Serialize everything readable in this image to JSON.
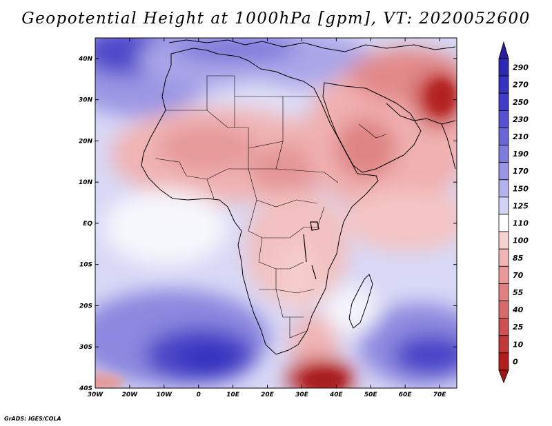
{
  "title": "Geopotential Height at 1000hPa [gpm], VT: 2020052600",
  "credit": "GrADS: IGES/COLA",
  "map": {
    "variable": "Geopotential Height",
    "level": "1000hPa",
    "units": "gpm",
    "valid_time": "2020052600",
    "lon_range": [
      -30,
      75
    ],
    "lat_range": [
      -40,
      45
    ],
    "lon_ticks": [
      {
        "value": -30,
        "label": "30W"
      },
      {
        "value": -20,
        "label": "20W"
      },
      {
        "value": -10,
        "label": "10W"
      },
      {
        "value": 0,
        "label": "0"
      },
      {
        "value": 10,
        "label": "10E"
      },
      {
        "value": 20,
        "label": "20E"
      },
      {
        "value": 30,
        "label": "30E"
      },
      {
        "value": 40,
        "label": "40E"
      },
      {
        "value": 50,
        "label": "50E"
      },
      {
        "value": 60,
        "label": "60E"
      },
      {
        "value": 70,
        "label": "70E"
      }
    ],
    "lat_ticks": [
      {
        "value": 40,
        "label": "40N"
      },
      {
        "value": 30,
        "label": "30N"
      },
      {
        "value": 20,
        "label": "20N"
      },
      {
        "value": 10,
        "label": "10N"
      },
      {
        "value": 0,
        "label": "EQ"
      },
      {
        "value": -10,
        "label": "10S"
      },
      {
        "value": -20,
        "label": "20S"
      },
      {
        "value": -30,
        "label": "30S"
      },
      {
        "value": -40,
        "label": "40S"
      }
    ]
  },
  "colorbar": {
    "levels": [
      {
        "label": "290",
        "color": "#2c28b4"
      },
      {
        "label": "270",
        "color": "#3532be"
      },
      {
        "label": "250",
        "color": "#403cc8"
      },
      {
        "label": "230",
        "color": "#5550cf"
      },
      {
        "label": "210",
        "color": "#6a66d6"
      },
      {
        "label": "190",
        "color": "#807cdd"
      },
      {
        "label": "170",
        "color": "#9995e4"
      },
      {
        "label": "150",
        "color": "#b4b2ec"
      },
      {
        "label": "125",
        "color": "#d2d2f5"
      },
      {
        "label": "110",
        "color": "#ffffff"
      },
      {
        "label": "100",
        "color": "#f6d2d2"
      },
      {
        "label": "85",
        "color": "#f0b4b4"
      },
      {
        "label": "70",
        "color": "#e99999"
      },
      {
        "label": "55",
        "color": "#e08080"
      },
      {
        "label": "40",
        "color": "#d66969"
      },
      {
        "label": "25",
        "color": "#cc5050"
      },
      {
        "label": "10",
        "color": "#bf3737"
      },
      {
        "label": "0",
        "color": "#b01e1e"
      }
    ],
    "top_color": "#2a1e9e",
    "bottom_color": "#a01818"
  },
  "field_centers": [
    {
      "name": "south-atlantic-high",
      "lon": -10,
      "lat": -32,
      "value": 290
    },
    {
      "name": "indian-ocean-high",
      "lon": 68,
      "lat": -33,
      "value": 270
    },
    {
      "name": "azores-high",
      "lon": -24,
      "lat": 44,
      "value": 260
    },
    {
      "name": "mediterranean-high",
      "lon": 18,
      "lat": 41,
      "value": 200
    },
    {
      "name": "south-africa-low",
      "lon": 33,
      "lat": -39,
      "value": 5
    },
    {
      "name": "pakistan-low",
      "lon": 68,
      "lat": 30,
      "value": 8
    },
    {
      "name": "arabia-low",
      "lon": 45,
      "lat": 18,
      "value": 60
    },
    {
      "name": "sahara-low",
      "lon": 0,
      "lat": 21,
      "value": 75
    }
  ]
}
